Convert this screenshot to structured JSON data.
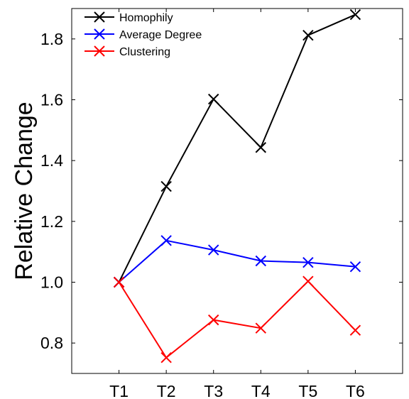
{
  "chart_data": {
    "type": "line",
    "title": "",
    "xlabel": "",
    "ylabel": "Relative Change",
    "categories": [
      "T1",
      "T2",
      "T3",
      "T4",
      "T5",
      "T6"
    ],
    "xlim": [
      0,
      7
    ],
    "ylim": [
      0.7,
      1.9
    ],
    "yticks": [
      "0.8",
      "1.0",
      "1.2",
      "1.4",
      "1.6",
      "1.8"
    ],
    "grid": false,
    "legend_position": "top-left",
    "marker": "x",
    "series": [
      {
        "name": "Homophily",
        "color": "#000000",
        "values": [
          1.0,
          1.315,
          1.602,
          1.443,
          1.812,
          1.88
        ]
      },
      {
        "name": "Average Degree",
        "color": "#0000ff",
        "values": [
          1.0,
          1.137,
          1.106,
          1.07,
          1.065,
          1.051
        ]
      },
      {
        "name": "Clustering",
        "color": "#ff0000",
        "values": [
          1.0,
          0.752,
          0.876,
          0.849,
          1.003,
          0.842
        ]
      }
    ]
  }
}
